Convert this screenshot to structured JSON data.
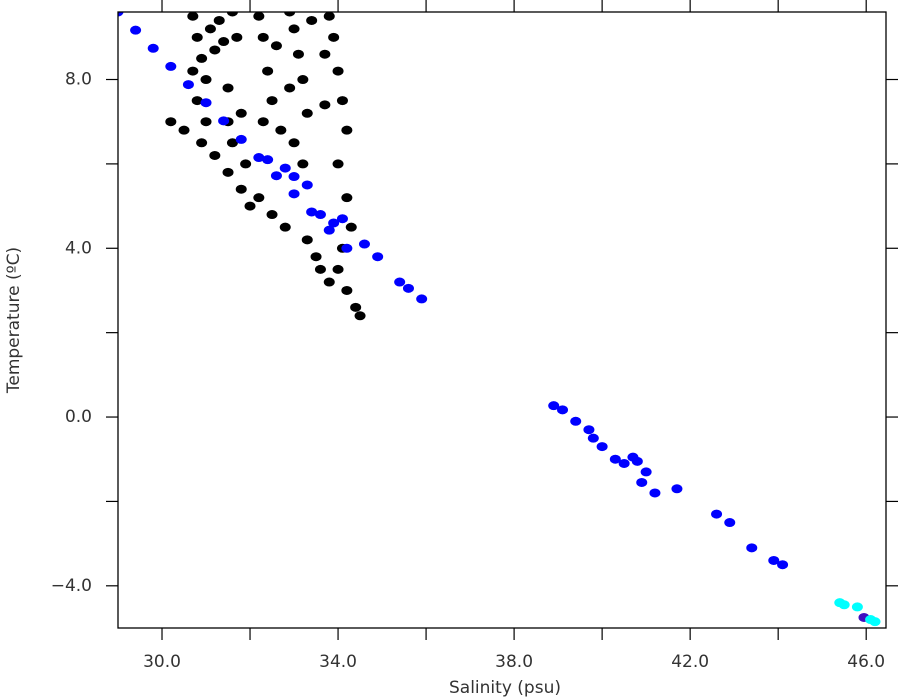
{
  "chart_data": {
    "type": "scatter",
    "xlabel": "Salinity (psu)",
    "ylabel": "Temperature (ºC)",
    "xlim": [
      29.0,
      46.45
    ],
    "ylim": [
      -5.0,
      9.6
    ],
    "xticks": [
      {
        "value": 30,
        "label": "30.0"
      },
      {
        "value": 34,
        "label": "34.0"
      },
      {
        "value": 38,
        "label": "38.0"
      },
      {
        "value": 42,
        "label": "42.0"
      },
      {
        "value": 46,
        "label": "46.0"
      }
    ],
    "xminorticks": [
      32,
      36,
      40,
      44
    ],
    "yticks": [
      {
        "value": 8,
        "label": "8.0"
      },
      {
        "value": 4,
        "label": "4.0"
      },
      {
        "value": 0,
        "label": "0.0"
      },
      {
        "value": -4,
        "label": "−4.0"
      }
    ],
    "yminorticks": [
      6,
      2,
      -2
    ],
    "series": [
      {
        "color": "#000000",
        "x": [
          30.7,
          30.8,
          30.9,
          31.0,
          30.8,
          31.1,
          31.2,
          31.0,
          30.7,
          31.3,
          31.4,
          31.5,
          31.6,
          31.7,
          31.8,
          31.6,
          31.9,
          31.5,
          30.2,
          30.5,
          30.9,
          31.2,
          31.5,
          31.8,
          32.0,
          32.2,
          32.3,
          32.4,
          32.5,
          32.3,
          32.6,
          32.7,
          32.2,
          32.5,
          32.8,
          32.9,
          33.0,
          33.1,
          33.2,
          33.3,
          33.0,
          33.2,
          32.9,
          33.4,
          33.3,
          33.5,
          33.6,
          33.8,
          33.9,
          34.0,
          34.1,
          34.2,
          33.7,
          34.0,
          34.2,
          34.3,
          34.0,
          34.2,
          34.4,
          34.5,
          33.8,
          34.1,
          33.7
        ],
        "y": [
          9.5,
          9.0,
          8.5,
          8.0,
          7.5,
          9.2,
          8.7,
          7.0,
          8.2,
          9.4,
          8.9,
          7.8,
          9.6,
          9.0,
          7.2,
          6.5,
          6.0,
          7.0,
          7.0,
          6.8,
          6.5,
          6.2,
          5.8,
          5.4,
          5.0,
          9.5,
          9.0,
          8.2,
          7.5,
          7.0,
          8.8,
          6.8,
          5.2,
          4.8,
          4.5,
          9.6,
          9.2,
          8.6,
          8.0,
          7.2,
          6.5,
          6.0,
          7.8,
          9.4,
          4.2,
          3.8,
          3.5,
          9.5,
          9.0,
          8.2,
          7.5,
          6.8,
          8.6,
          6.0,
          5.2,
          4.5,
          3.5,
          3.0,
          2.6,
          2.4,
          3.2,
          4.0,
          7.4
        ]
      },
      {
        "color": "#0000ff",
        "x": [
          29.0,
          29.4,
          29.8,
          30.2,
          30.6,
          31.0,
          31.4,
          31.8,
          32.2,
          32.6,
          33.0,
          33.4,
          33.8,
          34.2,
          32.4,
          32.8,
          33.0,
          33.3,
          33.6,
          33.9,
          34.1,
          34.6,
          34.9,
          35.4,
          35.6,
          35.9,
          38.9,
          39.1,
          39.4,
          39.7,
          39.8,
          40.0,
          40.3,
          40.5,
          40.7,
          40.8,
          41.0,
          40.9,
          41.2,
          41.7,
          42.6,
          42.9,
          43.4,
          43.9,
          44.1
        ],
        "y": [
          9.6,
          9.17,
          8.74,
          8.31,
          7.88,
          7.45,
          7.02,
          6.58,
          6.15,
          5.72,
          5.29,
          4.86,
          4.43,
          4.0,
          6.1,
          5.9,
          5.7,
          5.5,
          4.8,
          4.6,
          4.7,
          4.1,
          3.8,
          3.2,
          3.05,
          2.8,
          0.27,
          0.17,
          -0.1,
          -0.3,
          -0.5,
          -0.7,
          -1.0,
          -1.1,
          -0.95,
          -1.05,
          -1.3,
          -1.55,
          -1.8,
          -1.7,
          -2.3,
          -2.5,
          -3.1,
          -3.4,
          -3.5
        ]
      },
      {
        "color": "#4010c0",
        "x": [
          45.95
        ],
        "y": [
          -4.75
        ]
      },
      {
        "color": "#00ffff",
        "x": [
          45.4,
          45.5,
          45.8,
          46.1,
          46.2
        ],
        "y": [
          -4.4,
          -4.45,
          -4.5,
          -4.8,
          -4.85
        ]
      }
    ]
  }
}
